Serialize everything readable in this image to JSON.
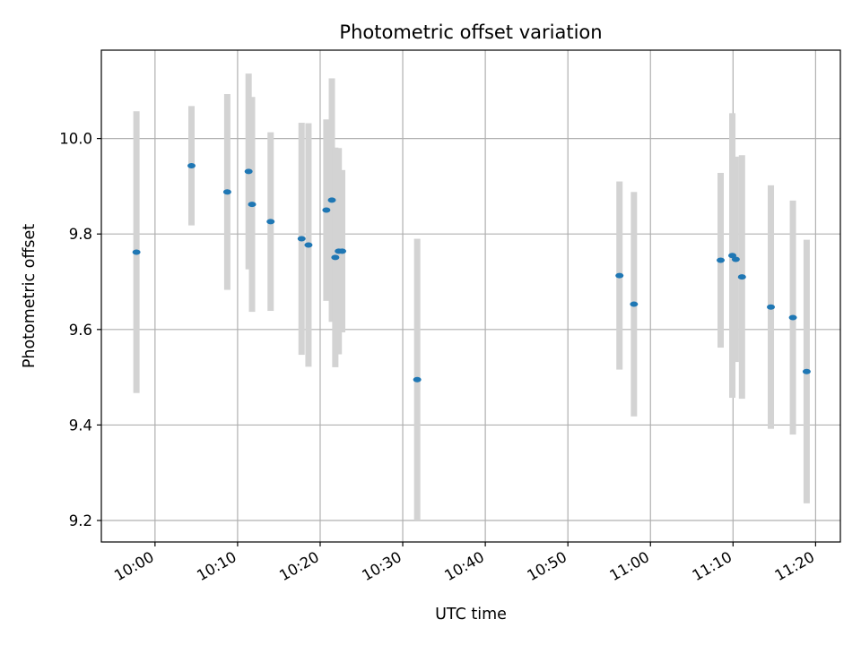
{
  "chart_data": {
    "type": "scatter",
    "title": "Photometric offset variation",
    "xlabel": "UTC time",
    "ylabel": "Photometric offset",
    "x_unit": "time (HH:MM UTC)",
    "xlim": [
      "09:53:30",
      "11:23:00"
    ],
    "ylim": [
      9.155,
      10.185
    ],
    "xticks": [
      "10:00",
      "10:10",
      "10:20",
      "10:30",
      "10:40",
      "10:50",
      "11:00",
      "11:10",
      "11:20"
    ],
    "yticks": [
      "9.2",
      "9.4",
      "9.6",
      "9.8",
      "10.0"
    ],
    "grid": true,
    "legend": "none",
    "colors": {
      "point": "#1f77b4",
      "errorbar": "#d3d3d3",
      "grid": "#b0b0b0",
      "axes": "#000000"
    },
    "points": [
      {
        "x": "09:57:45",
        "y": 9.762,
        "err": 0.295
      },
      {
        "x": "10:04:25",
        "y": 9.943,
        "err": 0.125
      },
      {
        "x": "10:08:45",
        "y": 9.888,
        "err": 0.205
      },
      {
        "x": "10:11:20",
        "y": 9.931,
        "err": 0.205
      },
      {
        "x": "10:11:45",
        "y": 9.862,
        "err": 0.225
      },
      {
        "x": "10:14:00",
        "y": 9.826,
        "err": 0.187
      },
      {
        "x": "10:17:45",
        "y": 9.79,
        "err": 0.243
      },
      {
        "x": "10:18:35",
        "y": 9.777,
        "err": 0.255
      },
      {
        "x": "10:20:45",
        "y": 9.85,
        "err": 0.19
      },
      {
        "x": "10:21:25",
        "y": 9.871,
        "err": 0.255
      },
      {
        "x": "10:21:50",
        "y": 9.751,
        "err": 0.23
      },
      {
        "x": "10:22:15",
        "y": 9.764,
        "err": 0.216
      },
      {
        "x": "10:22:40",
        "y": 9.764,
        "err": 0.17
      },
      {
        "x": "10:31:45",
        "y": 9.495,
        "err": 0.295
      },
      {
        "x": "10:56:15",
        "y": 9.713,
        "err": 0.197
      },
      {
        "x": "10:58:00",
        "y": 9.653,
        "err": 0.235
      },
      {
        "x": "11:08:30",
        "y": 9.745,
        "err": 0.183
      },
      {
        "x": "11:09:55",
        "y": 9.755,
        "err": 0.298
      },
      {
        "x": "11:10:20",
        "y": 9.747,
        "err": 0.215
      },
      {
        "x": "11:11:05",
        "y": 9.71,
        "err": 0.255
      },
      {
        "x": "11:14:35",
        "y": 9.647,
        "err": 0.255
      },
      {
        "x": "11:17:15",
        "y": 9.625,
        "err": 0.245
      },
      {
        "x": "11:18:55",
        "y": 9.512,
        "err": 0.276
      }
    ]
  }
}
